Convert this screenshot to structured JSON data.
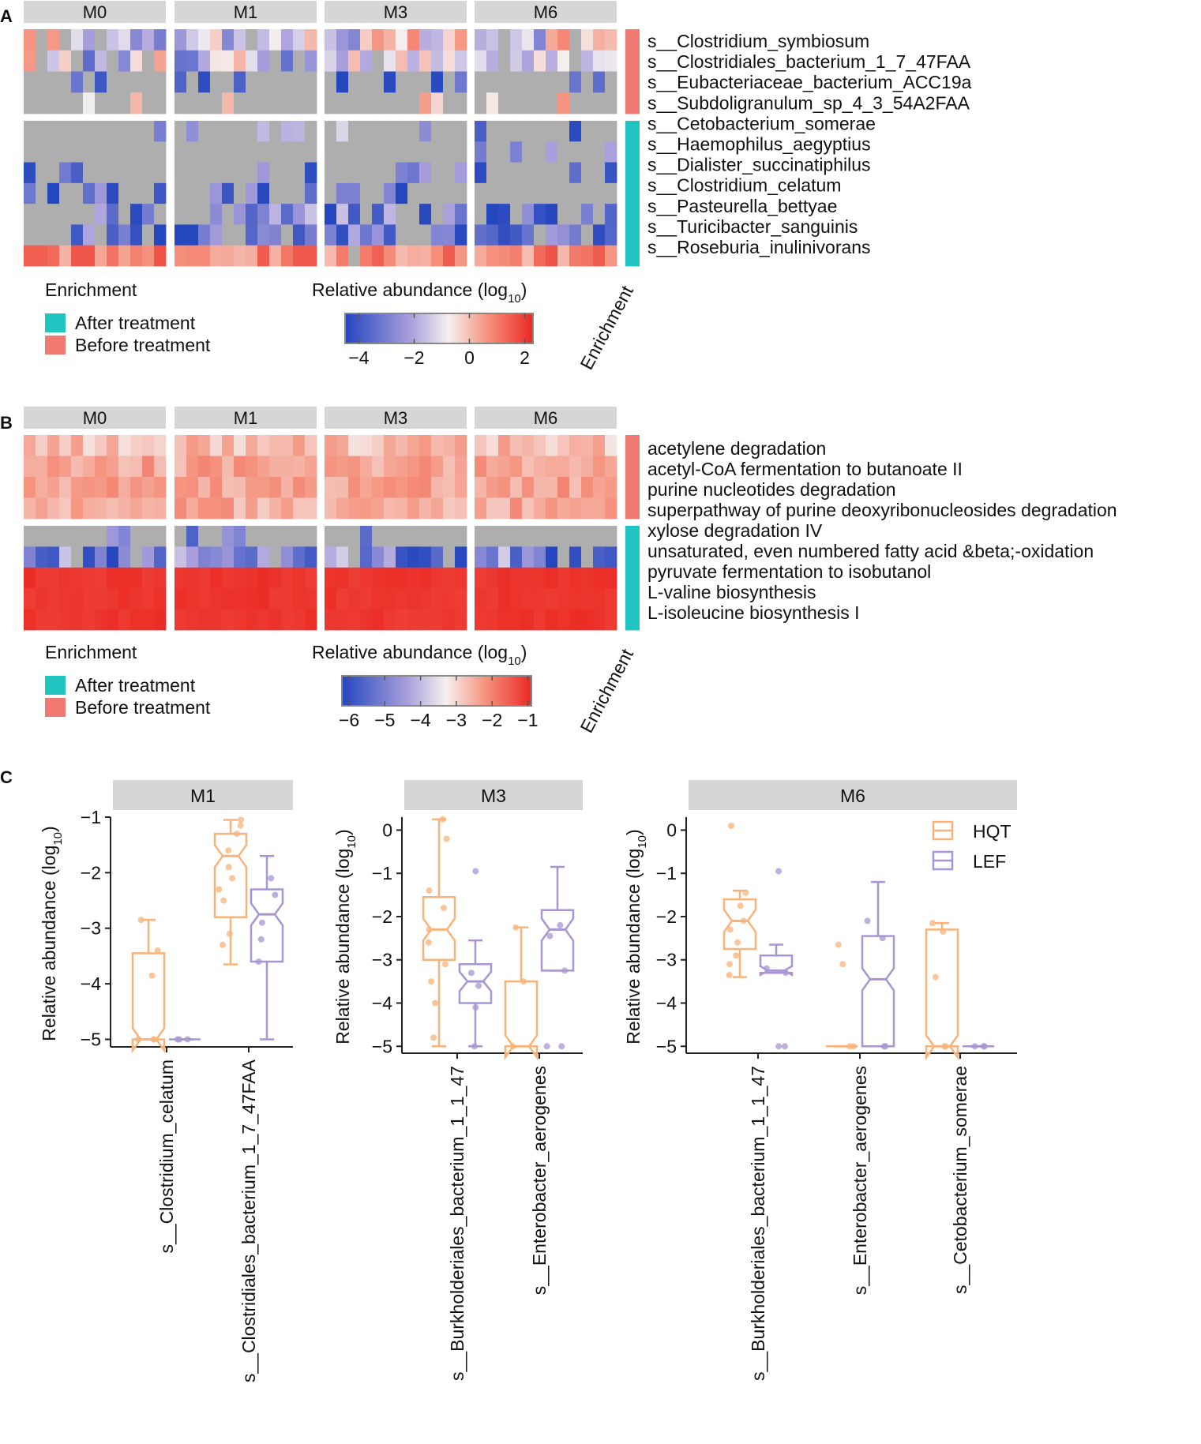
{
  "chart_data": [
    {
      "panel": "A",
      "type": "heatmap",
      "facets": [
        "M0",
        "M1",
        "M3",
        "M6"
      ],
      "rows": [
        {
          "label": "s__Clostridium_symbiosum",
          "enrichment": "Before treatment"
        },
        {
          "label": "s__Clostridiales_bacterium_1_7_47FAA",
          "enrichment": "Before treatment"
        },
        {
          "label": "s__Eubacteriaceae_bacterium_ACC19a",
          "enrichment": "Before treatment"
        },
        {
          "label": "s__Subdoligranulum_sp_4_3_54A2FAA",
          "enrichment": "Before treatment"
        },
        {
          "label": "s__Cetobacterium_somerae",
          "enrichment": "After treatment"
        },
        {
          "label": "s__Haemophilus_aegyptius",
          "enrichment": "After treatment"
        },
        {
          "label": "s__Dialister_succinatiphilus",
          "enrichment": "After treatment"
        },
        {
          "label": "s__Clostridium_celatum",
          "enrichment": "After treatment"
        },
        {
          "label": "s__Pasteurella_bettyae",
          "enrichment": "After treatment"
        },
        {
          "label": "s__Turicibacter_sanguinis",
          "enrichment": "After treatment"
        },
        {
          "label": "s__Roseburia_inulinivorans",
          "enrichment": "After treatment"
        }
      ],
      "samples_per_facet": 12,
      "colorbar": {
        "title": "Relative abundance (log",
        "title_sub": "10",
        "title_close": ")",
        "ticks": [
          "−4",
          "−2",
          "0",
          "2"
        ],
        "range": [
          -4.5,
          2.3
        ]
      },
      "legend": {
        "title": "Enrichment",
        "items": [
          {
            "label": "After treatment",
            "color": "#20C4C0"
          },
          {
            "label": "Before treatment",
            "color": "#F07A72"
          }
        ]
      },
      "side_label": "Enrichment"
    },
    {
      "panel": "B",
      "type": "heatmap",
      "facets": [
        "M0",
        "M1",
        "M3",
        "M6"
      ],
      "rows": [
        {
          "label": "acetylene degradation",
          "enrichment": "Before treatment"
        },
        {
          "label": "acetyl-CoA fermentation to butanoate II",
          "enrichment": "Before treatment"
        },
        {
          "label": "purine nucleotides degradation",
          "enrichment": "Before treatment"
        },
        {
          "label": "superpathway of purine deoxyribonucleosides degradation",
          "enrichment": "Before treatment"
        },
        {
          "label": "xylose degradation IV",
          "enrichment": "After treatment"
        },
        {
          "label": "unsaturated, even numbered fatty acid &beta;-oxidation",
          "enrichment": "After treatment"
        },
        {
          "label": "pyruvate fermentation to isobutanol",
          "enrichment": "After treatment"
        },
        {
          "label": "L-valine biosynthesis",
          "enrichment": "After treatment"
        },
        {
          "label": "L-isoleucine biosynthesis I",
          "enrichment": "After treatment"
        }
      ],
      "samples_per_facet": 12,
      "colorbar": {
        "title": "Relative abundance (log",
        "title_sub": "10",
        "title_close": ")",
        "ticks": [
          "−6",
          "−5",
          "−4",
          "−3",
          "−2",
          "−1"
        ],
        "range": [
          -6.2,
          -0.9
        ]
      },
      "legend": {
        "title": "Enrichment",
        "items": [
          {
            "label": "After treatment",
            "color": "#20C4C0"
          },
          {
            "label": "Before treatment",
            "color": "#F07A72"
          }
        ]
      },
      "side_label": "Enrichment"
    },
    {
      "panel": "C",
      "type": "box",
      "ylabel": "Relative abundance (log",
      "ylabel_sub": "10",
      "ylabel_close": ")",
      "groups": [
        {
          "name": "HQT",
          "color": "#F7B37A"
        },
        {
          "name": "LEF",
          "color": "#A896D2"
        }
      ],
      "facets": [
        {
          "title": "M1",
          "ylim": [
            -5.05,
            -1.0
          ],
          "yticks": [
            -1,
            -2,
            -3,
            -4,
            -5
          ],
          "categories": [
            "s__Clostridium_celatum",
            "s__Clostridiales_bacterium_1_7_47FAA"
          ],
          "boxes": [
            {
              "category": 0,
              "group": "HQT",
              "min": -5.0,
              "q1": -5.0,
              "median": -5.0,
              "q3": -3.45,
              "max": -2.85,
              "points": [
                -2.85,
                -3.4,
                -3.85,
                -5.0,
                -5.0,
                -5.0
              ]
            },
            {
              "category": 0,
              "group": "LEF",
              "min": -5.0,
              "q1": -5.0,
              "median": -5.0,
              "q3": -5.0,
              "max": -5.0,
              "points": [
                -5.0,
                -5.0,
                -5.0
              ]
            },
            {
              "category": 1,
              "group": "HQT",
              "min": -3.65,
              "q1": -2.8,
              "median": -1.7,
              "q3": -1.3,
              "max": -1.05,
              "points": [
                -1.05,
                -1.15,
                -1.3,
                -1.6,
                -1.9,
                -2.1,
                -2.3,
                -2.5,
                -3.1,
                -3.3
              ]
            },
            {
              "category": 1,
              "group": "LEF",
              "min": -5.0,
              "q1": -3.6,
              "median": -2.75,
              "q3": -2.3,
              "max": -1.7,
              "points": [
                -2.1,
                -2.4,
                -2.9,
                -3.2,
                -3.6
              ]
            }
          ]
        },
        {
          "title": "M3",
          "ylim": [
            -5.05,
            0.3
          ],
          "yticks": [
            0,
            -1,
            -2,
            -3,
            -4,
            -5
          ],
          "categories": [
            "s__Burkholderiales_bacterium_1_1_47",
            "s__Enterobacter_aerogenes"
          ],
          "boxes": [
            {
              "category": 0,
              "group": "HQT",
              "min": -5.0,
              "q1": -3.0,
              "median": -2.3,
              "q3": -1.55,
              "max": 0.25,
              "points": [
                0.25,
                -0.2,
                -1.4,
                -1.8,
                -2.3,
                -2.6,
                -3.1,
                -3.5,
                -4.0,
                -4.8
              ]
            },
            {
              "category": 0,
              "group": "LEF",
              "min": -5.0,
              "q1": -4.0,
              "median": -3.5,
              "q3": -3.1,
              "max": -2.55,
              "points": [
                -0.95,
                -3.3,
                -3.6,
                -4.1,
                -5.0
              ]
            },
            {
              "category": 1,
              "group": "HQT",
              "min": -5.0,
              "q1": -5.0,
              "median": -5.0,
              "q3": -3.5,
              "max": -2.25,
              "points": [
                -2.25,
                -3.5,
                -5.0
              ]
            },
            {
              "category": 1,
              "group": "LEF",
              "min": -3.25,
              "q1": -3.25,
              "median": -2.3,
              "q3": -1.85,
              "max": -0.85,
              "points": [
                -2.2,
                -2.45,
                -3.25,
                -5.0,
                -5.0
              ]
            }
          ]
        },
        {
          "title": "M6",
          "ylim": [
            -5.05,
            0.3
          ],
          "yticks": [
            0,
            -1,
            -2,
            -3,
            -4,
            -5
          ],
          "categories": [
            "s__Burkholderiales_bacterium_1_1_47",
            "s__Enterobacter_aerogenes",
            "s__Cetobacterium_somerae"
          ],
          "boxes": [
            {
              "category": 0,
              "group": "HQT",
              "min": -3.4,
              "q1": -2.75,
              "median": -2.1,
              "q3": -1.6,
              "max": -1.4,
              "points": [
                0.1,
                -1.45,
                -1.75,
                -2.1,
                -2.3,
                -2.6,
                -2.9,
                -3.1,
                -3.35
              ]
            },
            {
              "category": 0,
              "group": "LEF",
              "min": -3.3,
              "q1": -3.3,
              "median": -3.25,
              "q3": -2.9,
              "max": -2.65,
              "points": [
                -0.95,
                -3.2,
                -3.3,
                -5.0,
                -5.0
              ]
            },
            {
              "category": 1,
              "group": "HQT",
              "min": -5.0,
              "q1": -5.0,
              "median": -5.0,
              "q3": -5.0,
              "max": -5.0,
              "points": [
                -2.65,
                -3.1,
                -5.0,
                -5.0
              ]
            },
            {
              "category": 1,
              "group": "LEF",
              "min": -5.0,
              "q1": -5.0,
              "median": -3.45,
              "q3": -2.45,
              "max": -1.2,
              "points": [
                -2.1,
                -2.5,
                -5.0,
                -5.0
              ]
            },
            {
              "category": 2,
              "group": "HQT",
              "min": -5.0,
              "q1": -5.0,
              "median": -5.0,
              "q3": -2.3,
              "max": -2.15,
              "points": [
                -2.15,
                -2.35,
                -3.4,
                -5.0,
                -5.0
              ]
            },
            {
              "category": 2,
              "group": "LEF",
              "min": -5.0,
              "q1": -5.0,
              "median": -5.0,
              "q3": -5.0,
              "max": -5.0,
              "points": [
                -5.0,
                -5.0,
                -5.0
              ]
            }
          ]
        }
      ]
    }
  ]
}
